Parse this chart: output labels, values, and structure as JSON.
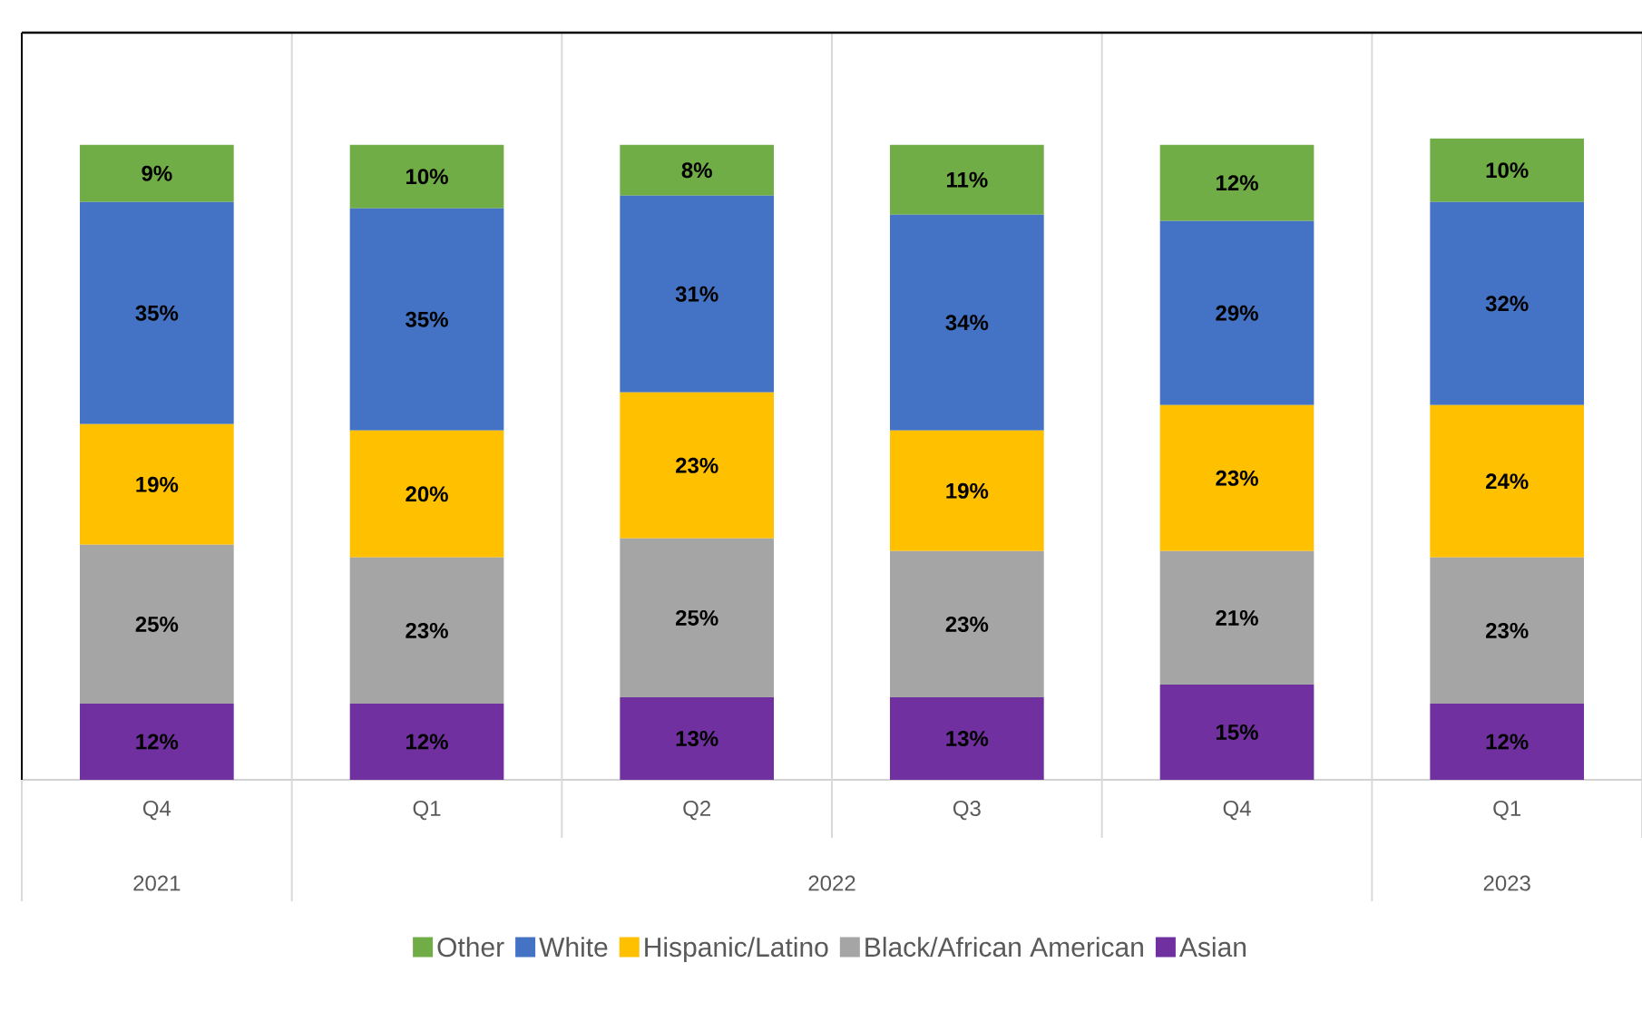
{
  "chart_data": {
    "type": "bar",
    "stacked": true,
    "categories": [
      "Q4",
      "Q1",
      "Q2",
      "Q3",
      "Q4",
      "Q1"
    ],
    "annotations": [
      "2021",
      "2022",
      "2023"
    ],
    "series": [
      {
        "name": "Asian",
        "color": "#7030a0",
        "values": [
          12,
          12,
          13,
          13,
          15,
          12
        ],
        "value_labels": [
          "12%",
          "12%",
          "13%",
          "13%",
          "15%",
          "12%"
        ]
      },
      {
        "name": "Black/African American",
        "color": "#a5a5a5",
        "values": [
          25,
          23,
          25,
          23,
          21,
          23
        ],
        "value_labels": [
          "25%",
          "23%",
          "25%",
          "23%",
          "21%",
          "23%"
        ]
      },
      {
        "name": "Hispanic/Latino",
        "color": "#ffc000",
        "values": [
          19,
          20,
          23,
          19,
          23,
          24
        ],
        "value_labels": [
          "19%",
          "20%",
          "23%",
          "19%",
          "23%",
          "24%"
        ]
      },
      {
        "name": "White",
        "color": "#4472c4",
        "values": [
          35,
          35,
          31,
          34,
          29,
          32
        ],
        "value_labels": [
          "35%",
          "35%",
          "31%",
          "34%",
          "29%",
          "32%"
        ]
      },
      {
        "name": "Other",
        "color": "#70ad47",
        "values": [
          9,
          10,
          8,
          11,
          12,
          10
        ],
        "value_labels": [
          "9%",
          "10%",
          "8%",
          "11%",
          "12%",
          "10%"
        ]
      }
    ],
    "grid": "x",
    "legend": "bottom"
  }
}
